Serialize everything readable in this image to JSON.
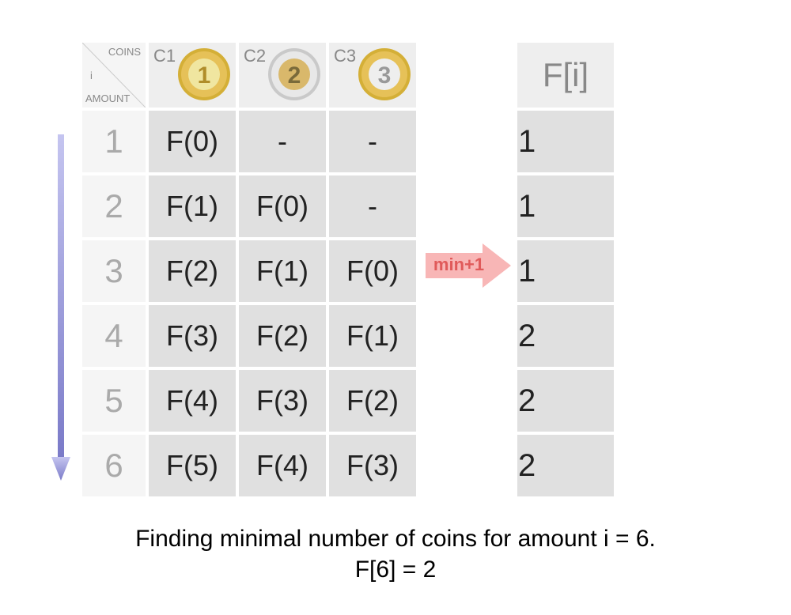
{
  "corner": {
    "top": "COINS",
    "mid": "i",
    "bottom": "AMOUNT"
  },
  "coin_headers": [
    {
      "label": "C1",
      "value": "1",
      "colors": {
        "rim": "#d4af37",
        "ring": "#e6c158",
        "center": "#f0e6a0",
        "text": "#b08d2a"
      }
    },
    {
      "label": "C2",
      "value": "2",
      "colors": {
        "rim": "#c9c9c9",
        "ring": "#e8e8e8",
        "center": "#d9b86b",
        "text": "#7a6a3a"
      }
    },
    {
      "label": "C3",
      "value": "3",
      "colors": {
        "rim": "#d4af37",
        "ring": "#e6c158",
        "center": "#eeeeee",
        "text": "#999999"
      }
    }
  ],
  "rows": [
    {
      "i": "1",
      "cells": [
        "F(0)",
        "-",
        "-"
      ]
    },
    {
      "i": "2",
      "cells": [
        "F(1)",
        "F(0)",
        "-"
      ]
    },
    {
      "i": "3",
      "cells": [
        "F(2)",
        "F(1)",
        "F(0)"
      ]
    },
    {
      "i": "4",
      "cells": [
        "F(3)",
        "F(2)",
        "F(1)"
      ]
    },
    {
      "i": "5",
      "cells": [
        "F(4)",
        "F(3)",
        "F(2)"
      ]
    },
    {
      "i": "6",
      "cells": [
        "F(5)",
        "F(4)",
        "F(3)"
      ]
    }
  ],
  "result": {
    "header": "F[i]",
    "values": [
      "1",
      "1",
      "1",
      "2",
      "2",
      "2"
    ]
  },
  "min_arrow": {
    "label": "min+1",
    "row_index": 2,
    "fill": "#f8b6b6",
    "text": "#e05a5a"
  },
  "down_arrow": {
    "from": "#c5c5f0",
    "to": "#7a7ac8"
  },
  "caption": {
    "line1": "Finding minimal number of coins for amount i = 6.",
    "line2": "F[6] = 2"
  },
  "style": {
    "cell_bg": "#e0e0e0",
    "head_bg": "#eeeeee",
    "rowhead_bg": "#f5f5f5",
    "rowhead_color": "#aaaaaa",
    "head_color": "#888888",
    "cell_font": 36,
    "result_font": 40
  }
}
